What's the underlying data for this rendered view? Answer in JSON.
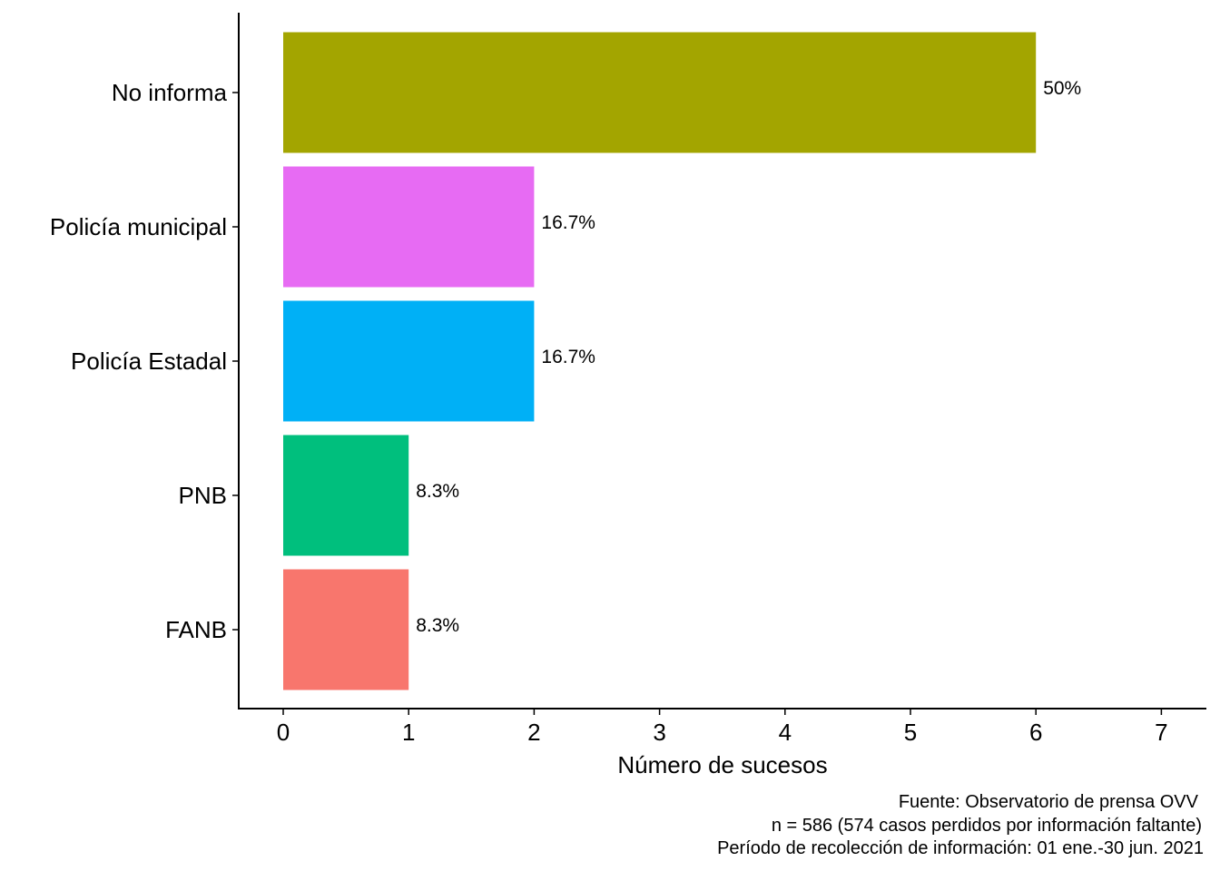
{
  "chart_data": {
    "type": "bar",
    "orientation": "horizontal",
    "categories": [
      "No informa",
      "Policía municipal",
      "Policía Estadal",
      "PNB",
      "FANB"
    ],
    "values": [
      6,
      2,
      2,
      1,
      1
    ],
    "labels": [
      "50%",
      "16.7%",
      "16.7%",
      "8.3%",
      "8.3%"
    ],
    "colors": [
      "#A3A500",
      "#E76BF3",
      "#00B0F6",
      "#00BF7D",
      "#F8766D"
    ],
    "xlabel": "Número de sucesos",
    "ylabel": "",
    "xlim": [
      0,
      7
    ],
    "xticks": [
      0,
      1,
      2,
      3,
      4,
      5,
      6,
      7
    ],
    "grid": false,
    "legend": "none"
  },
  "caption": {
    "lines": [
      "Fuente: Observatorio de prensa OVV",
      "n = 586 (574 casos perdidos por información faltante)",
      "Período de recolección de información: 01 ene.-30 jun. 2021"
    ]
  }
}
